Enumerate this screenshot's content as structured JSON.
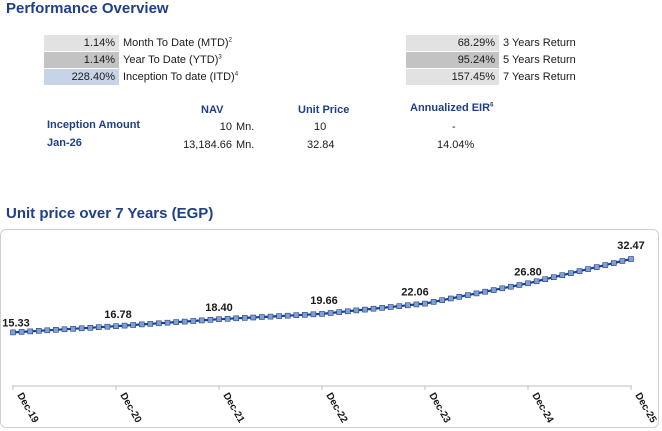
{
  "performance": {
    "title": "Performance Overview",
    "short_term": [
      {
        "value": "1.14%",
        "label": "Month To Date (MTD)",
        "note": "2",
        "shade": "light"
      },
      {
        "value": "1.14%",
        "label": "Year To Date (YTD)",
        "note": "3",
        "shade": "mid"
      },
      {
        "value": "228.40%",
        "label": "Inception To date (ITD)",
        "note": "4",
        "shade": "blue"
      }
    ],
    "long_term": [
      {
        "value": "68.29%",
        "label": "3 Years Return",
        "shade": "light"
      },
      {
        "value": "95.24%",
        "label": "5 Years Return",
        "shade": "mid"
      },
      {
        "value": "157.45%",
        "label": "7 Years Return",
        "shade": "light"
      }
    ]
  },
  "nav_table": {
    "headers": {
      "nav": "NAV",
      "unit_price": "Unit Price",
      "eir": "Annualized EIR",
      "eir_note": "6"
    },
    "rows": [
      {
        "label": "Inception Amount",
        "nav": "10",
        "unit": "Mn.",
        "unit_price": "10",
        "eir": "-"
      },
      {
        "label": "Jan-26",
        "nav": "13,184.66",
        "unit": "Mn.",
        "unit_price": "32.84",
        "eir": "14.04%"
      }
    ]
  },
  "chart": {
    "title": "Unit price over 7 Years (EGP)"
  },
  "chart_data": {
    "type": "line",
    "title": "Unit price over 7 Years (EGP)",
    "xlabel": "",
    "ylabel": "",
    "ylim": [
      0,
      40
    ],
    "grid": false,
    "x_ticks": [
      "Dec-19",
      "Dec-20",
      "Dec-21",
      "Dec-22",
      "Dec-23",
      "Dec-24",
      "Dec-25"
    ],
    "labeled_points": [
      {
        "x": "Dec-19",
        "y": 15.33
      },
      {
        "x": "Dec-20",
        "y": 16.78
      },
      {
        "x": "Dec-21",
        "y": 18.4
      },
      {
        "x": "Dec-22",
        "y": 19.66
      },
      {
        "x": "Dec-23",
        "y": 22.06
      },
      {
        "x": "Dec-24",
        "y": 26.8
      },
      {
        "x": "Dec-25",
        "y": 32.47
      }
    ],
    "series": [
      {
        "values": [
          15.33,
          15.45,
          15.57,
          15.69,
          15.81,
          15.93,
          16.05,
          16.17,
          16.29,
          16.41,
          16.54,
          16.66,
          16.78,
          16.92,
          17.05,
          17.19,
          17.32,
          17.46,
          17.59,
          17.73,
          17.86,
          18.0,
          18.13,
          18.27,
          18.4,
          18.5,
          18.61,
          18.71,
          18.82,
          18.92,
          19.03,
          19.13,
          19.24,
          19.34,
          19.45,
          19.55,
          19.66,
          19.86,
          20.06,
          20.26,
          20.46,
          20.66,
          20.86,
          21.06,
          21.26,
          21.46,
          21.66,
          21.86,
          22.06,
          22.46,
          22.85,
          23.25,
          23.64,
          24.04,
          24.43,
          24.83,
          25.22,
          25.62,
          26.01,
          26.41,
          26.8,
          27.27,
          27.75,
          28.22,
          28.69,
          29.16,
          29.64,
          30.11,
          30.58,
          31.05,
          31.52,
          32.0,
          32.47
        ]
      }
    ],
    "color": "#1f3f86",
    "marker_color": "#7f9fd6"
  }
}
